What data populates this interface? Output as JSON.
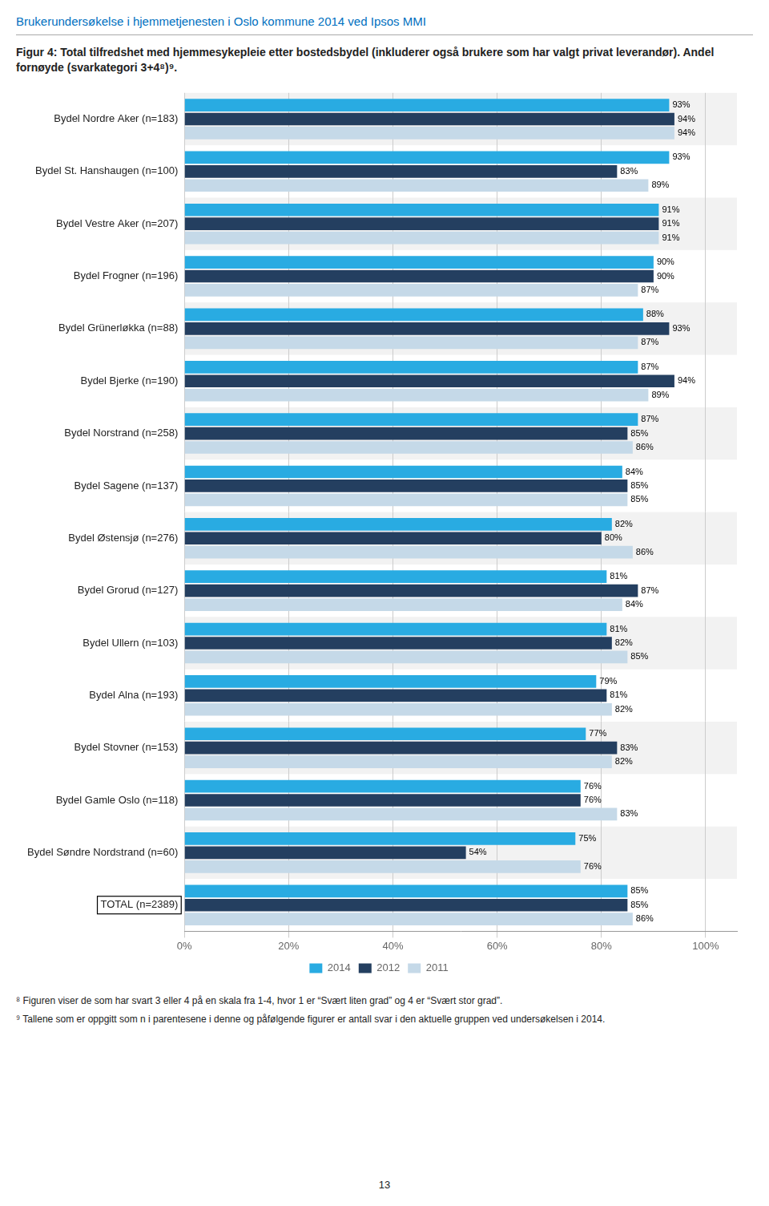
{
  "chart_data": {
    "type": "bar",
    "orientation": "horizontal",
    "title": "Figur 4: Total tilfredshet med hjemmesykepleie etter bostedsbydel (inkluderer også brukere som har valgt privat leverandør). Andel fornøyde (svarkategori 3+4⁸)⁹.",
    "annotations": [
      "Brukerundersøkelse i hjemmetjenesten i Oslo kommune 2014 ved Ipsos MMI",
      "⁸ Figuren viser de som har svart 3 eller 4 på en skala fra 1-4, hvor 1 er “Svært liten grad” og 4 er “Svært stor grad”.",
      "⁹ Tallene som er oppgitt som n i parentesene i denne og påfølgende figurer er antall svar i den aktuelle gruppen ved undersøkelsen i 2014.",
      "13"
    ],
    "categories": [
      "Bydel Nordre Aker (n=183)",
      "Bydel St. Hanshaugen (n=100)",
      "Bydel Vestre Aker (n=207)",
      "Bydel Frogner (n=196)",
      "Bydel Grünerløkka (n=88)",
      "Bydel Bjerke (n=190)",
      "Bydel Norstrand (n=258)",
      "Bydel Sagene (n=137)",
      "Bydel Østensjø (n=276)",
      "Bydel Grorud (n=127)",
      "Bydel Ullern (n=103)",
      "Bydel Alna (n=193)",
      "Bydel Stovner (n=153)",
      "Bydel Gamle Oslo (n=118)",
      "Bydel Søndre Nordstrand (n=60)",
      "TOTAL (n=2389)"
    ],
    "series": [
      {
        "name": "2014",
        "color": "#29ABE2",
        "values": [
          93,
          93,
          91,
          90,
          88,
          87,
          87,
          84,
          82,
          81,
          81,
          79,
          77,
          76,
          75,
          85
        ],
        "value_labels": [
          "93%",
          "93%",
          "91%",
          "90%",
          "88%",
          "87%",
          "87%",
          "84%",
          "82%",
          "81%",
          "81%",
          "79%",
          "77%",
          "76%",
          "75%",
          "85%"
        ]
      },
      {
        "name": "2012",
        "color": "#243F60",
        "values": [
          94,
          83,
          91,
          90,
          93,
          94,
          85,
          85,
          80,
          87,
          82,
          81,
          83,
          76,
          54,
          85
        ],
        "value_labels": [
          "94%",
          "83%",
          "91%",
          "90%",
          "93%",
          "94%",
          "85%",
          "85%",
          "80%",
          "87%",
          "82%",
          "81%",
          "83%",
          "76%",
          "54%",
          "85%"
        ]
      },
      {
        "name": "2011",
        "color": "#C5D9E8",
        "values": [
          94,
          89,
          91,
          87,
          87,
          89,
          86,
          85,
          86,
          84,
          85,
          82,
          82,
          83,
          76,
          86
        ],
        "value_labels": [
          "94%",
          "89%",
          "91%",
          "87%",
          "87%",
          "89%",
          "86%",
          "85%",
          "86%",
          "84%",
          "85%",
          "82%",
          "82%",
          "83%",
          "76%",
          "86%"
        ]
      }
    ],
    "xlim": [
      0,
      106
    ],
    "xticks": [
      {
        "value": 0,
        "label": "0%"
      },
      {
        "value": 20,
        "label": "20%"
      },
      {
        "value": 40,
        "label": "40%"
      },
      {
        "value": 60,
        "label": "60%"
      },
      {
        "value": 80,
        "label": "80%"
      },
      {
        "value": 100,
        "label": "100%"
      }
    ],
    "grid": true,
    "legend": "bottom",
    "data_labels": true
  }
}
